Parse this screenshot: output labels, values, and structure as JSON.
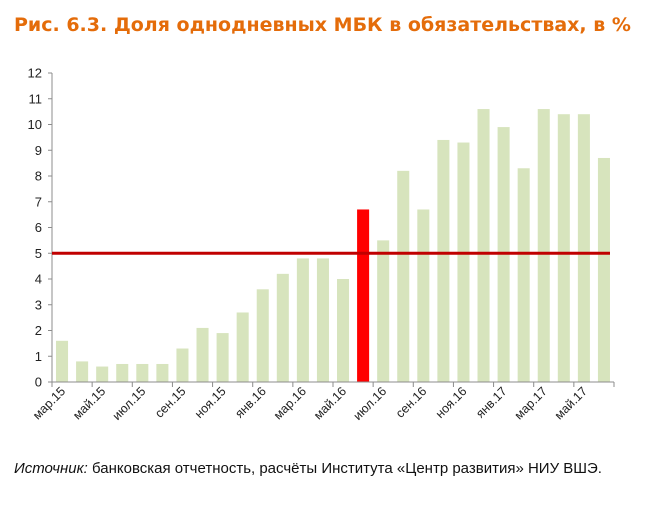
{
  "title": "Рис. 6.3. Доля однодневных МБК в обязательствах, в %",
  "source": {
    "label": "Источник:",
    "text": " банковская отчетность, расчёты Института «Центр развития» НИУ ВШЭ."
  },
  "colors": {
    "title": "#e46c0a",
    "bar": "#d7e4bd",
    "highlight_bar": "#ff0000",
    "reference_line": "#c00000"
  },
  "chart_data": {
    "type": "bar",
    "x": [
      "мар.15",
      "апр.15",
      "май.15",
      "июн.15",
      "июл.15",
      "авг.15",
      "сен.15",
      "окт.15",
      "ноя.15",
      "дек.15",
      "янв.16",
      "фев.16",
      "мар.16",
      "апр.16",
      "май.16",
      "июн.16",
      "июл.16",
      "авг.16",
      "сен.16",
      "окт.16",
      "ноя.16",
      "дек.16",
      "янв.17",
      "фев.17",
      "мар.17",
      "апр.17",
      "май.17",
      "июн.17"
    ],
    "x_tick_labels": [
      "мар.15",
      "май.15",
      "июл.15",
      "сен.15",
      "ноя.15",
      "янв.16",
      "мар.16",
      "май.16",
      "июл.16",
      "сен.16",
      "ноя.16",
      "янв.17",
      "мар.17",
      "май.17"
    ],
    "values": [
      1.6,
      0.8,
      0.6,
      0.7,
      0.7,
      0.7,
      1.3,
      2.1,
      1.9,
      2.7,
      3.6,
      4.2,
      4.8,
      4.8,
      4.0,
      6.7,
      5.5,
      8.2,
      6.7,
      9.4,
      9.3,
      10.6,
      9.9,
      8.3,
      10.6,
      10.4,
      10.4,
      8.7
    ],
    "highlight_category": "июн.16",
    "reference_line": 5,
    "ylim": [
      0,
      12
    ],
    "yticks": [
      0,
      1,
      2,
      3,
      4,
      5,
      6,
      7,
      8,
      9,
      10,
      11,
      12
    ],
    "grid": false,
    "legend": "none"
  }
}
